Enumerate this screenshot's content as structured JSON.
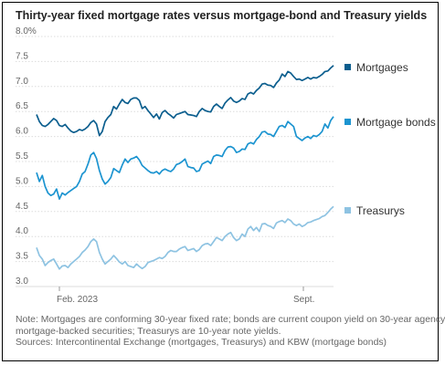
{
  "chart_data": {
    "type": "line",
    "title": "Thirty-year fixed mortgage rates versus mortgage-bond and Treasury yields",
    "ylim": [
      3.0,
      8.0
    ],
    "y_ticks": [
      "8.0%",
      "7.5",
      "7.0",
      "6.5",
      "6.0",
      "5.5",
      "5.0",
      "4.5",
      "4.0",
      "3.5",
      "3.0"
    ],
    "y_tick_values": [
      8.0,
      7.5,
      7.0,
      6.5,
      6.0,
      5.5,
      5.0,
      4.5,
      4.0,
      3.5,
      3.0
    ],
    "x_ticks": [
      "Feb. 2023",
      "Sept."
    ],
    "grid": true,
    "legend_placement": "right, beside each line",
    "series": [
      {
        "name": "Mortgages",
        "color": "#0b5e8e",
        "values": [
          6.44,
          6.3,
          6.22,
          6.2,
          6.24,
          6.3,
          6.36,
          6.32,
          6.22,
          6.2,
          6.24,
          6.17,
          6.11,
          6.08,
          6.1,
          6.14,
          6.12,
          6.15,
          6.2,
          6.28,
          6.32,
          6.25,
          6.02,
          6.1,
          6.3,
          6.38,
          6.44,
          6.6,
          6.55,
          6.65,
          6.74,
          6.68,
          6.66,
          6.74,
          6.77,
          6.77,
          6.72,
          6.56,
          6.6,
          6.52,
          6.45,
          6.38,
          6.45,
          6.35,
          6.48,
          6.52,
          6.46,
          6.42,
          6.37,
          6.44,
          6.46,
          6.48,
          6.5,
          6.44,
          6.43,
          6.42,
          6.4,
          6.5,
          6.56,
          6.52,
          6.5,
          6.49,
          6.6,
          6.65,
          6.6,
          6.56,
          6.67,
          6.73,
          6.78,
          6.71,
          6.68,
          6.71,
          6.76,
          6.74,
          6.85,
          6.88,
          6.85,
          6.92,
          6.97,
          7.05,
          7.06,
          7.03,
          7.02,
          6.98,
          7.07,
          7.13,
          7.25,
          7.2,
          7.3,
          7.27,
          7.2,
          7.14,
          7.15,
          7.12,
          7.15,
          7.18,
          7.15,
          7.18,
          7.17,
          7.2,
          7.24,
          7.3,
          7.31,
          7.37,
          7.42
        ]
      },
      {
        "name": "Mortgage bonds",
        "color": "#1c94d0",
        "values": [
          5.28,
          5.1,
          5.22,
          5.0,
          4.87,
          4.82,
          4.85,
          4.95,
          4.75,
          4.87,
          4.83,
          4.88,
          4.92,
          4.96,
          5.0,
          5.1,
          5.25,
          5.3,
          5.45,
          5.63,
          5.68,
          5.56,
          5.32,
          5.15,
          5.05,
          5.1,
          5.18,
          5.36,
          5.32,
          5.28,
          5.43,
          5.55,
          5.48,
          5.55,
          5.57,
          5.6,
          5.53,
          5.42,
          5.37,
          5.32,
          5.28,
          5.27,
          5.3,
          5.25,
          5.32,
          5.35,
          5.32,
          5.3,
          5.35,
          5.44,
          5.46,
          5.5,
          5.55,
          5.4,
          5.38,
          5.37,
          5.3,
          5.32,
          5.45,
          5.48,
          5.51,
          5.46,
          5.6,
          5.63,
          5.62,
          5.6,
          5.72,
          5.79,
          5.8,
          5.77,
          5.68,
          5.7,
          5.75,
          5.74,
          5.85,
          5.88,
          5.85,
          5.94,
          6.0,
          6.09,
          6.1,
          6.05,
          6.04,
          6.0,
          6.1,
          6.2,
          6.22,
          6.18,
          6.3,
          6.25,
          6.2,
          6.0,
          5.96,
          5.92,
          5.97,
          6.0,
          5.96,
          6.02,
          6.0,
          6.04,
          6.1,
          6.25,
          6.17,
          6.32,
          6.4
        ]
      },
      {
        "name": "Treasurys",
        "color": "#8ec3e2",
        "values": [
          3.78,
          3.62,
          3.55,
          3.42,
          3.48,
          3.52,
          3.55,
          3.45,
          3.35,
          3.41,
          3.42,
          3.38,
          3.45,
          3.5,
          3.55,
          3.6,
          3.68,
          3.73,
          3.8,
          3.9,
          3.95,
          3.9,
          3.68,
          3.55,
          3.45,
          3.5,
          3.55,
          3.62,
          3.56,
          3.49,
          3.45,
          3.5,
          3.42,
          3.4,
          3.38,
          3.45,
          3.4,
          3.36,
          3.4,
          3.48,
          3.5,
          3.52,
          3.55,
          3.58,
          3.56,
          3.6,
          3.68,
          3.72,
          3.7,
          3.7,
          3.75,
          3.78,
          3.8,
          3.72,
          3.74,
          3.76,
          3.7,
          3.74,
          3.82,
          3.85,
          3.86,
          3.82,
          3.9,
          3.98,
          3.95,
          3.92,
          4.0,
          4.05,
          4.08,
          3.98,
          3.92,
          3.95,
          4.05,
          4.0,
          4.15,
          4.2,
          4.12,
          4.18,
          4.1,
          4.25,
          4.26,
          4.22,
          4.2,
          4.16,
          4.27,
          4.3,
          4.32,
          4.28,
          4.35,
          4.32,
          4.25,
          4.22,
          4.25,
          4.2,
          4.23,
          4.28,
          4.29,
          4.32,
          4.34,
          4.36,
          4.4,
          4.42,
          4.48,
          4.55,
          4.6
        ]
      }
    ]
  },
  "notes": {
    "line1": "Note: Mortgages are conforming 30-year fixed rate; bonds are current coupon yield on 30-year agency",
    "line2": "mortgage-backed securities; Treasurys are 10-year note yields.",
    "line3": "Sources: Intercontinental Exchange (mortgages, Treasurys) and KBW (mortgage bonds)"
  }
}
